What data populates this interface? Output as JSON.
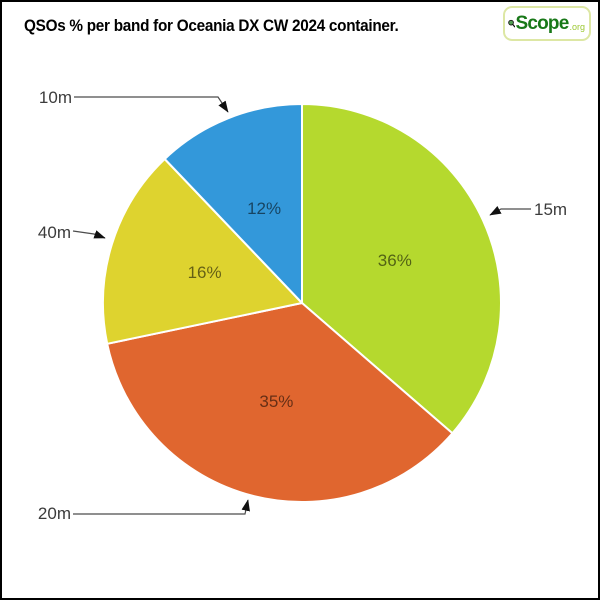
{
  "header": {
    "title": "QSOs % per band for Oceania DX CW 2024 container.",
    "logo": {
      "name": "Scope",
      "suffix": ".org"
    }
  },
  "chart_data": {
    "type": "pie",
    "title": "QSOs % per band for Oceania DX CW 2024 container.",
    "value_unit": "%",
    "direction": "clockwise",
    "start_angle_deg": 0,
    "legend": "none",
    "slices": [
      {
        "label": "15m",
        "value": 36,
        "percent_text": "36%",
        "color": "#b5d92e"
      },
      {
        "label": "20m",
        "value": 35,
        "percent_text": "35%",
        "color": "#e0662f"
      },
      {
        "label": "40m",
        "value": 16,
        "percent_text": "16%",
        "color": "#ded32f"
      },
      {
        "label": "10m",
        "value": 12,
        "percent_text": "12%",
        "color": "#3398da"
      }
    ],
    "percent_label_color": "rgba(0,0,0,0.55)",
    "outside_label_color": "#3c3c3c"
  }
}
